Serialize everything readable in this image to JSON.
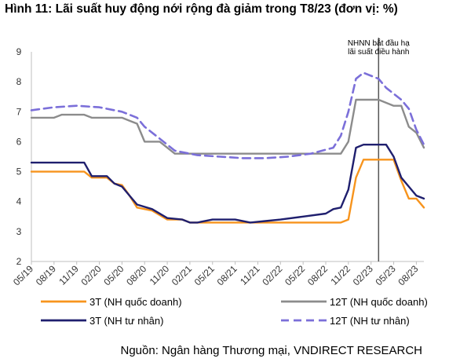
{
  "title": "Hình 11: Lãi suất huy động nới rộng đà giảm trong T8/23 (đơn vị: %)",
  "source": "Nguồn: Ngân hàng Thương mại, VNDIRECT RESEARCH",
  "chart_data": {
    "type": "line",
    "title": "Hình 11: Lãi suất huy động nới rộng đà giảm trong T8/23 (đơn vị: %)",
    "xlabel": "",
    "ylabel": "",
    "ylim": [
      2,
      9
    ],
    "yticks": [
      "2",
      "3",
      "4",
      "5",
      "6",
      "7",
      "8",
      "9"
    ],
    "x_start": "2019-05",
    "x_end": "2023-09",
    "xticks": [
      "05/19",
      "08/19",
      "11/19",
      "02/20",
      "05/20",
      "08/20",
      "11/20",
      "02/21",
      "05/21",
      "08/21",
      "11/21",
      "02/22",
      "05/22",
      "08/22",
      "11/22",
      "02/23",
      "05/23",
      "08/23"
    ],
    "grid": false,
    "legend_position": "bottom",
    "annotation": {
      "date": "2023-03",
      "lines": [
        "NHNN bắt đầu hạ",
        "lãi suất điều hành"
      ],
      "color": "#555555"
    },
    "series": [
      {
        "name": "3T (NH quốc doanh)",
        "color": "#F7941D",
        "dash": "solid",
        "points": [
          [
            "2019-05",
            5.0
          ],
          [
            "2019-12",
            5.0
          ],
          [
            "2020-01",
            4.8
          ],
          [
            "2020-03",
            4.8
          ],
          [
            "2020-04",
            4.6
          ],
          [
            "2020-05",
            4.55
          ],
          [
            "2020-06",
            4.2
          ],
          [
            "2020-07",
            3.8
          ],
          [
            "2020-09",
            3.7
          ],
          [
            "2020-11",
            3.4
          ],
          [
            "2021-01",
            3.4
          ],
          [
            "2021-02",
            3.3
          ],
          [
            "2022-10",
            3.3
          ],
          [
            "2022-11",
            3.4
          ],
          [
            "2022-12",
            4.8
          ],
          [
            "2023-01",
            5.4
          ],
          [
            "2023-05",
            5.4
          ],
          [
            "2023-06",
            4.7
          ],
          [
            "2023-07",
            4.1
          ],
          [
            "2023-08",
            4.1
          ],
          [
            "2023-09",
            3.8
          ]
        ]
      },
      {
        "name": "12T (NH quốc doanh)",
        "color": "#8C8C8C",
        "dash": "solid",
        "points": [
          [
            "2019-05",
            6.8
          ],
          [
            "2019-08",
            6.8
          ],
          [
            "2019-09",
            6.9
          ],
          [
            "2019-12",
            6.9
          ],
          [
            "2020-01",
            6.8
          ],
          [
            "2020-05",
            6.8
          ],
          [
            "2020-06",
            6.7
          ],
          [
            "2020-07",
            6.6
          ],
          [
            "2020-08",
            6.0
          ],
          [
            "2020-10",
            6.0
          ],
          [
            "2020-11",
            5.8
          ],
          [
            "2020-12",
            5.6
          ],
          [
            "2022-09",
            5.6
          ],
          [
            "2022-10",
            5.6
          ],
          [
            "2022-11",
            6.0
          ],
          [
            "2022-12",
            7.4
          ],
          [
            "2023-03",
            7.4
          ],
          [
            "2023-05",
            7.2
          ],
          [
            "2023-06",
            7.2
          ],
          [
            "2023-07",
            6.5
          ],
          [
            "2023-08",
            6.3
          ],
          [
            "2023-09",
            5.8
          ]
        ]
      },
      {
        "name": "3T (NH tư nhân)",
        "color": "#1F1F6E",
        "dash": "solid",
        "points": [
          [
            "2019-05",
            5.3
          ],
          [
            "2019-08",
            5.3
          ],
          [
            "2019-12",
            5.3
          ],
          [
            "2020-01",
            4.85
          ],
          [
            "2020-03",
            4.85
          ],
          [
            "2020-04",
            4.6
          ],
          [
            "2020-05",
            4.5
          ],
          [
            "2020-06",
            4.2
          ],
          [
            "2020-07",
            3.9
          ],
          [
            "2020-09",
            3.75
          ],
          [
            "2020-11",
            3.45
          ],
          [
            "2021-01",
            3.4
          ],
          [
            "2021-02",
            3.3
          ],
          [
            "2021-03",
            3.3
          ],
          [
            "2021-05",
            3.4
          ],
          [
            "2021-08",
            3.4
          ],
          [
            "2021-10",
            3.3
          ],
          [
            "2021-12",
            3.35
          ],
          [
            "2022-02",
            3.4
          ],
          [
            "2022-05",
            3.5
          ],
          [
            "2022-08",
            3.6
          ],
          [
            "2022-09",
            3.75
          ],
          [
            "2022-10",
            3.8
          ],
          [
            "2022-11",
            4.4
          ],
          [
            "2022-12",
            5.8
          ],
          [
            "2023-01",
            5.9
          ],
          [
            "2023-04",
            5.9
          ],
          [
            "2023-05",
            5.5
          ],
          [
            "2023-06",
            4.8
          ],
          [
            "2023-07",
            4.5
          ],
          [
            "2023-08",
            4.2
          ],
          [
            "2023-09",
            4.1
          ]
        ]
      },
      {
        "name": "12T (NH tư nhân)",
        "color": "#7B6FD9",
        "dash": "dashed",
        "points": [
          [
            "2019-05",
            7.05
          ],
          [
            "2019-08",
            7.15
          ],
          [
            "2019-11",
            7.2
          ],
          [
            "2020-02",
            7.15
          ],
          [
            "2020-05",
            7.0
          ],
          [
            "2020-07",
            6.8
          ],
          [
            "2020-08",
            6.5
          ],
          [
            "2020-10",
            6.1
          ],
          [
            "2020-12",
            5.7
          ],
          [
            "2021-03",
            5.55
          ],
          [
            "2021-06",
            5.5
          ],
          [
            "2021-09",
            5.45
          ],
          [
            "2021-12",
            5.45
          ],
          [
            "2022-03",
            5.5
          ],
          [
            "2022-06",
            5.6
          ],
          [
            "2022-09",
            5.8
          ],
          [
            "2022-10",
            6.2
          ],
          [
            "2022-11",
            7.0
          ],
          [
            "2022-12",
            8.1
          ],
          [
            "2023-01",
            8.3
          ],
          [
            "2023-03",
            8.1
          ],
          [
            "2023-04",
            7.8
          ],
          [
            "2023-05",
            7.6
          ],
          [
            "2023-06",
            7.4
          ],
          [
            "2023-07",
            7.1
          ],
          [
            "2023-08",
            6.4
          ],
          [
            "2023-09",
            5.9
          ]
        ]
      }
    ]
  }
}
